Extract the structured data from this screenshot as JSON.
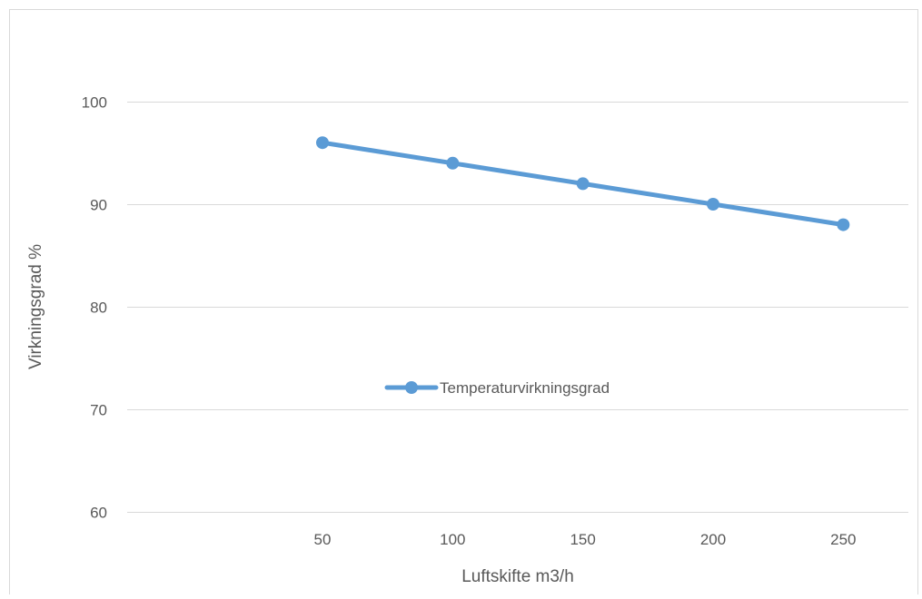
{
  "chart_data": {
    "type": "line",
    "title": "",
    "xlabel": "Luftskifte m3/h",
    "ylabel": "Virkningsgrad %",
    "categories": [
      "",
      "50",
      "100",
      "150",
      "200",
      "250"
    ],
    "x": [
      50,
      100,
      150,
      200,
      250
    ],
    "series": [
      {
        "name": "Temperaturvirkningsgrad",
        "values": [
          96,
          94,
          92,
          90,
          88
        ],
        "color": "#5B9BD5"
      }
    ],
    "ylim": [
      60,
      100
    ],
    "yticks": [
      60,
      70,
      80,
      90,
      100
    ],
    "ytick_labels": [
      "60",
      "70",
      "80",
      "90",
      "100"
    ],
    "xtick_labels": [
      "50",
      "100",
      "150",
      "200",
      "250"
    ],
    "grid": "horizontal",
    "legend_position": "center"
  }
}
